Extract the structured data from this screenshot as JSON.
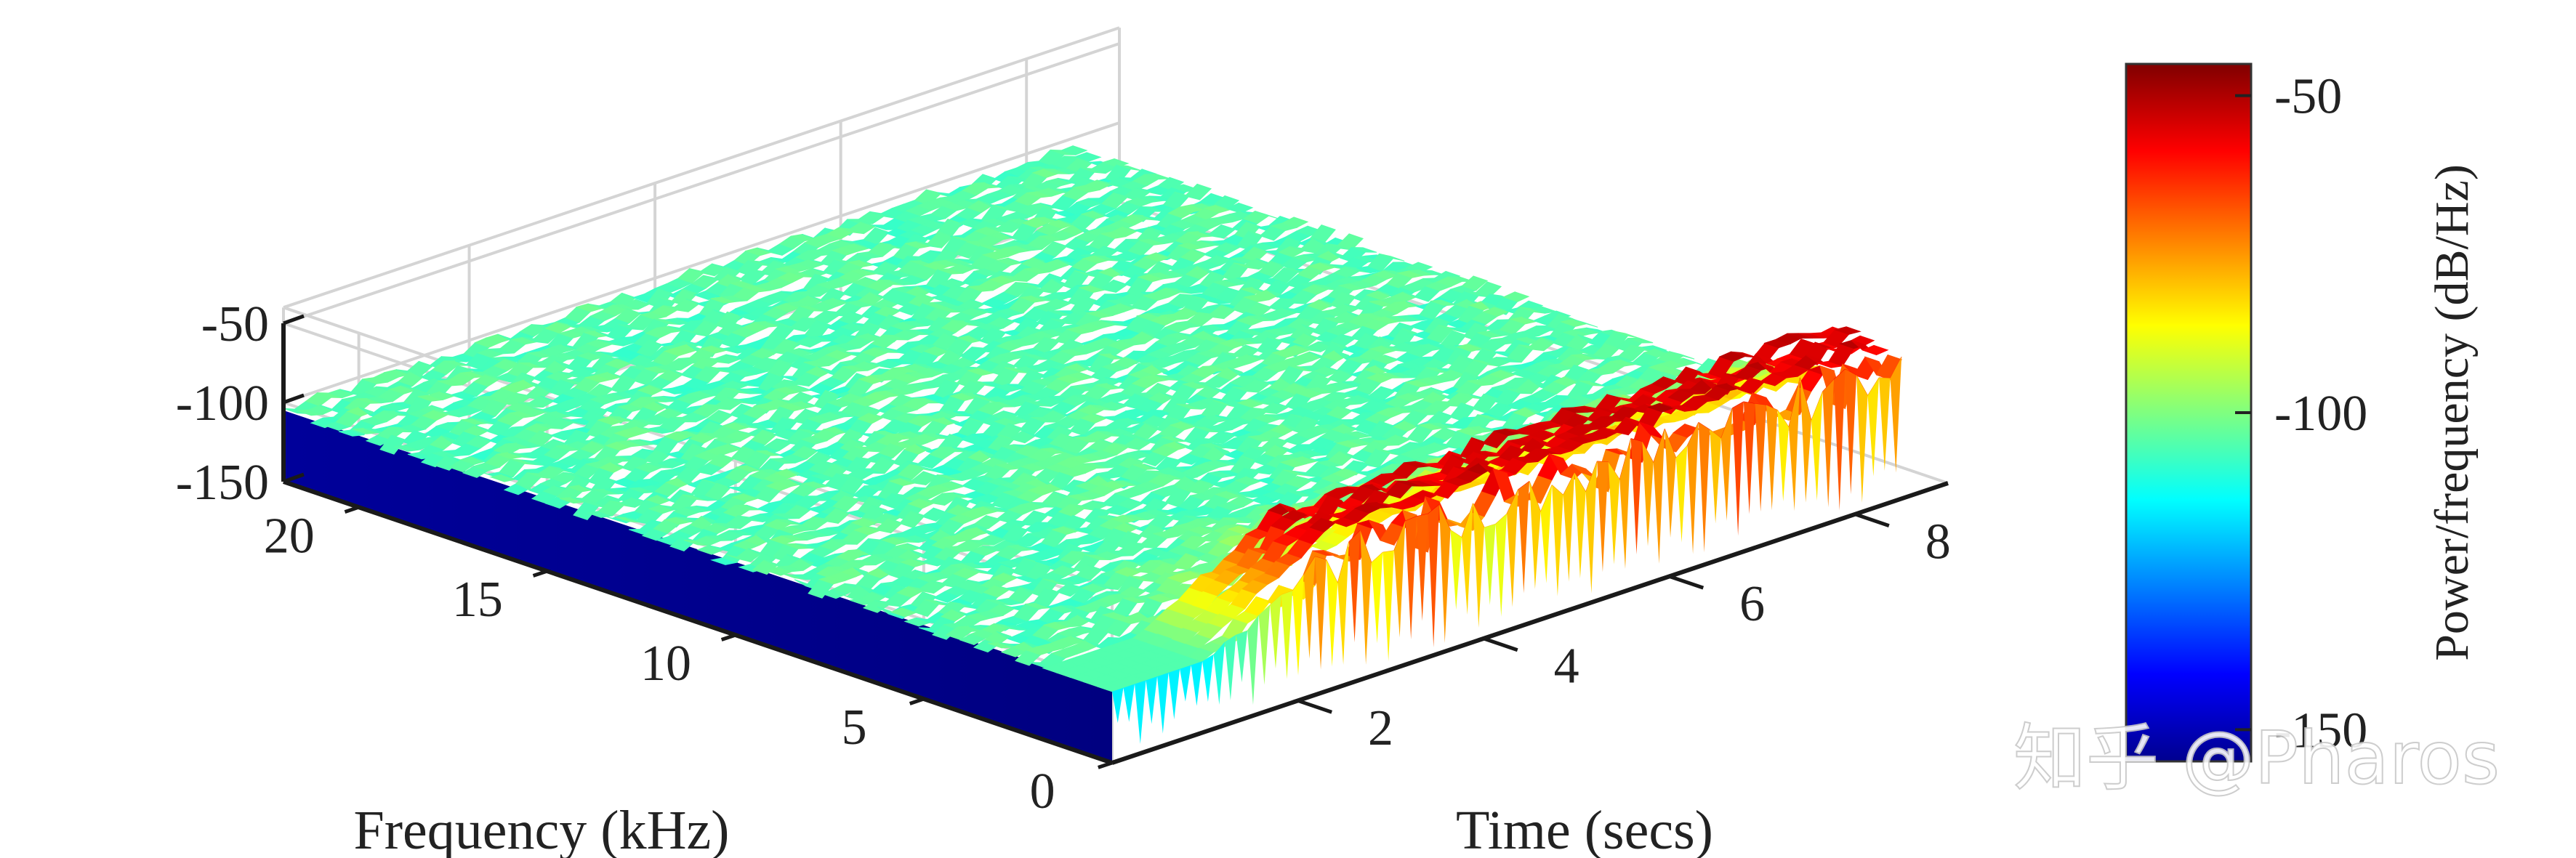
{
  "chart_data": {
    "type": "surface",
    "view": "3d",
    "x_axis": {
      "label": "Time (secs)",
      "ticks": [
        2,
        4,
        6,
        8
      ],
      "tick_labels": [
        "2",
        "4",
        "6",
        "8"
      ],
      "range": [
        0,
        9
      ]
    },
    "y_axis": {
      "label": "Frequency (kHz)",
      "ticks": [
        0,
        5,
        10,
        15,
        20
      ],
      "tick_labels": [
        "0",
        "5",
        "10",
        "15",
        "20"
      ],
      "range": [
        0,
        22
      ]
    },
    "z_axis": {
      "ticks": [
        -150,
        -100,
        -50
      ],
      "tick_labels": [
        "-150",
        "-100",
        "-50"
      ],
      "range": [
        -150,
        -40
      ]
    },
    "colorbar": {
      "label": "Power/frequency (dB/Hz)",
      "ticks": [
        -150,
        -100,
        -50
      ],
      "tick_labels": [
        "-150",
        "-100",
        "-50"
      ],
      "range": [
        -155,
        -45
      ],
      "colormap": "jet"
    },
    "grid": true,
    "surface_summary": {
      "high_power_band_khz": [
        0,
        2
      ],
      "high_power_level_db": -55,
      "background_level_db": -105,
      "floor_level_db": -150,
      "time_range_secs": [
        0,
        8.5
      ],
      "freq_range_khz": [
        0,
        22
      ]
    }
  },
  "watermark": {
    "text": "知乎 @Pharos"
  }
}
